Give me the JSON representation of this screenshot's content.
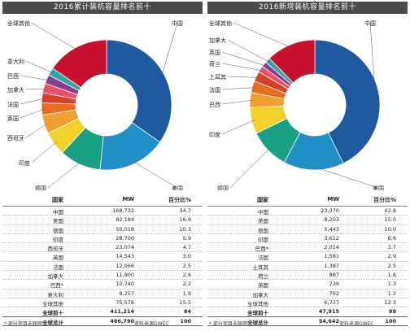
{
  "colors": {
    "china": "#1f5aa0",
    "usa": "#1f8fc6",
    "germany": "#17a084",
    "india": "#f4d02a",
    "fourth": "#f0a02e",
    "fifth": "#ea6d1f",
    "sixth": "#d9402a",
    "seventh": "#ee4f6c",
    "eighth": "#8f3a8e",
    "ninth": "#2aa8a6",
    "tenth": "#3f8f4e",
    "other": "#c8102e"
  },
  "table_headers": {
    "country": "国家",
    "mw": "MW",
    "pct": "百分比%"
  },
  "chart_data": [
    {
      "type": "pie",
      "title": "2016累计装机容量排名前十",
      "unit": "MW",
      "table": [
        {
          "country": "中国",
          "mw": "168,732",
          "pct": "34.7"
        },
        {
          "country": "美国",
          "mw": "82,184",
          "pct": "16.9"
        },
        {
          "country": "德国",
          "mw": "50,018",
          "pct": "10.3"
        },
        {
          "country": "印度",
          "mw": "28,700",
          "pct": "5.9"
        },
        {
          "country": "西班牙",
          "mw": "23,074",
          "pct": "4.7"
        },
        {
          "country": "英国",
          "mw": "14,543",
          "pct": "3.0"
        },
        {
          "country": "法国",
          "mw": "12,066",
          "pct": "2.5"
        },
        {
          "country": "加拿大",
          "mw": "11,900",
          "pct": "2.4"
        },
        {
          "country": "巴西*",
          "mw": "10,740",
          "pct": "2.2"
        },
        {
          "country": "意大利",
          "mw": "9,257",
          "pct": "1.9"
        },
        {
          "country": "全球其他",
          "mw": "75,576",
          "pct": "15.5"
        }
      ],
      "totals": [
        {
          "country": "全球前十",
          "mw": "411,214",
          "pct": "84"
        },
        {
          "country": "全球总计",
          "mw": "486,790",
          "pct": "100"
        }
      ],
      "slices": [
        {
          "label": "中国",
          "value": 34.7,
          "color": "#1f5aa0"
        },
        {
          "label": "美国",
          "value": 16.9,
          "color": "#1f8fc6"
        },
        {
          "label": "德国",
          "value": 10.3,
          "color": "#17a084"
        },
        {
          "label": "印度",
          "value": 5.9,
          "color": "#f4d02a"
        },
        {
          "label": "西班牙",
          "value": 4.7,
          "color": "#f0a02e"
        },
        {
          "label": "英国",
          "value": 3.0,
          "color": "#ea6d1f"
        },
        {
          "label": "法国",
          "value": 2.5,
          "color": "#d9402a"
        },
        {
          "label": "加拿大",
          "value": 2.4,
          "color": "#ee4f6c"
        },
        {
          "label": "巴西",
          "value": 2.2,
          "color": "#8f3a8e"
        },
        {
          "label": "意大利",
          "value": 1.9,
          "color": "#2aa8a6"
        },
        {
          "label": "全球其他",
          "value": 15.5,
          "color": "#c8102e"
        }
      ],
      "footnote": "* 部分项目未联网",
      "source": "资料来源GWEC"
    },
    {
      "type": "pie",
      "title": "2016新增装机容量排名前十",
      "unit": "MW",
      "table": [
        {
          "country": "中国",
          "mw": "23,370",
          "pct": "42.8"
        },
        {
          "country": "美国",
          "mw": "8,203",
          "pct": "15.0"
        },
        {
          "country": "德国",
          "mw": "5,443",
          "pct": "10.0"
        },
        {
          "country": "印度",
          "mw": "3,612",
          "pct": "6.6"
        },
        {
          "country": "巴西*",
          "mw": "2,014",
          "pct": "3.7"
        },
        {
          "country": "法国",
          "mw": "1,561",
          "pct": "2.9"
        },
        {
          "country": "土耳其",
          "mw": "1,387",
          "pct": "2.5"
        },
        {
          "country": "荷兰",
          "mw": "887",
          "pct": "1.6"
        },
        {
          "country": "英国",
          "mw": "736",
          "pct": "1.3"
        },
        {
          "country": "加拿大",
          "mw": "702",
          "pct": "1.3"
        },
        {
          "country": "全球其他",
          "mw": "6,727",
          "pct": "12.3"
        }
      ],
      "totals": [
        {
          "country": "全球前十",
          "mw": "47,915",
          "pct": "88"
        },
        {
          "country": "全球总计",
          "mw": "54,642",
          "pct": "100"
        }
      ],
      "slices": [
        {
          "label": "中国",
          "value": 42.8,
          "color": "#1f5aa0"
        },
        {
          "label": "美国",
          "value": 15.0,
          "color": "#1f8fc6"
        },
        {
          "label": "德国",
          "value": 10.0,
          "color": "#17a084"
        },
        {
          "label": "印度",
          "value": 6.6,
          "color": "#f4d02a"
        },
        {
          "label": "巴西",
          "value": 3.7,
          "color": "#f0a02e"
        },
        {
          "label": "法国",
          "value": 2.9,
          "color": "#ea6d1f"
        },
        {
          "label": "土耳其",
          "value": 2.5,
          "color": "#d9402a"
        },
        {
          "label": "荷兰",
          "value": 1.6,
          "color": "#ee4f6c"
        },
        {
          "label": "英国",
          "value": 1.3,
          "color": "#8f3a8e"
        },
        {
          "label": "加拿大",
          "value": 1.3,
          "color": "#2aa8a6"
        },
        {
          "label": "全球其他",
          "value": 12.3,
          "color": "#c8102e"
        }
      ],
      "footnote": "* 部分项目未联网",
      "source": "资料来源GWEC"
    }
  ]
}
